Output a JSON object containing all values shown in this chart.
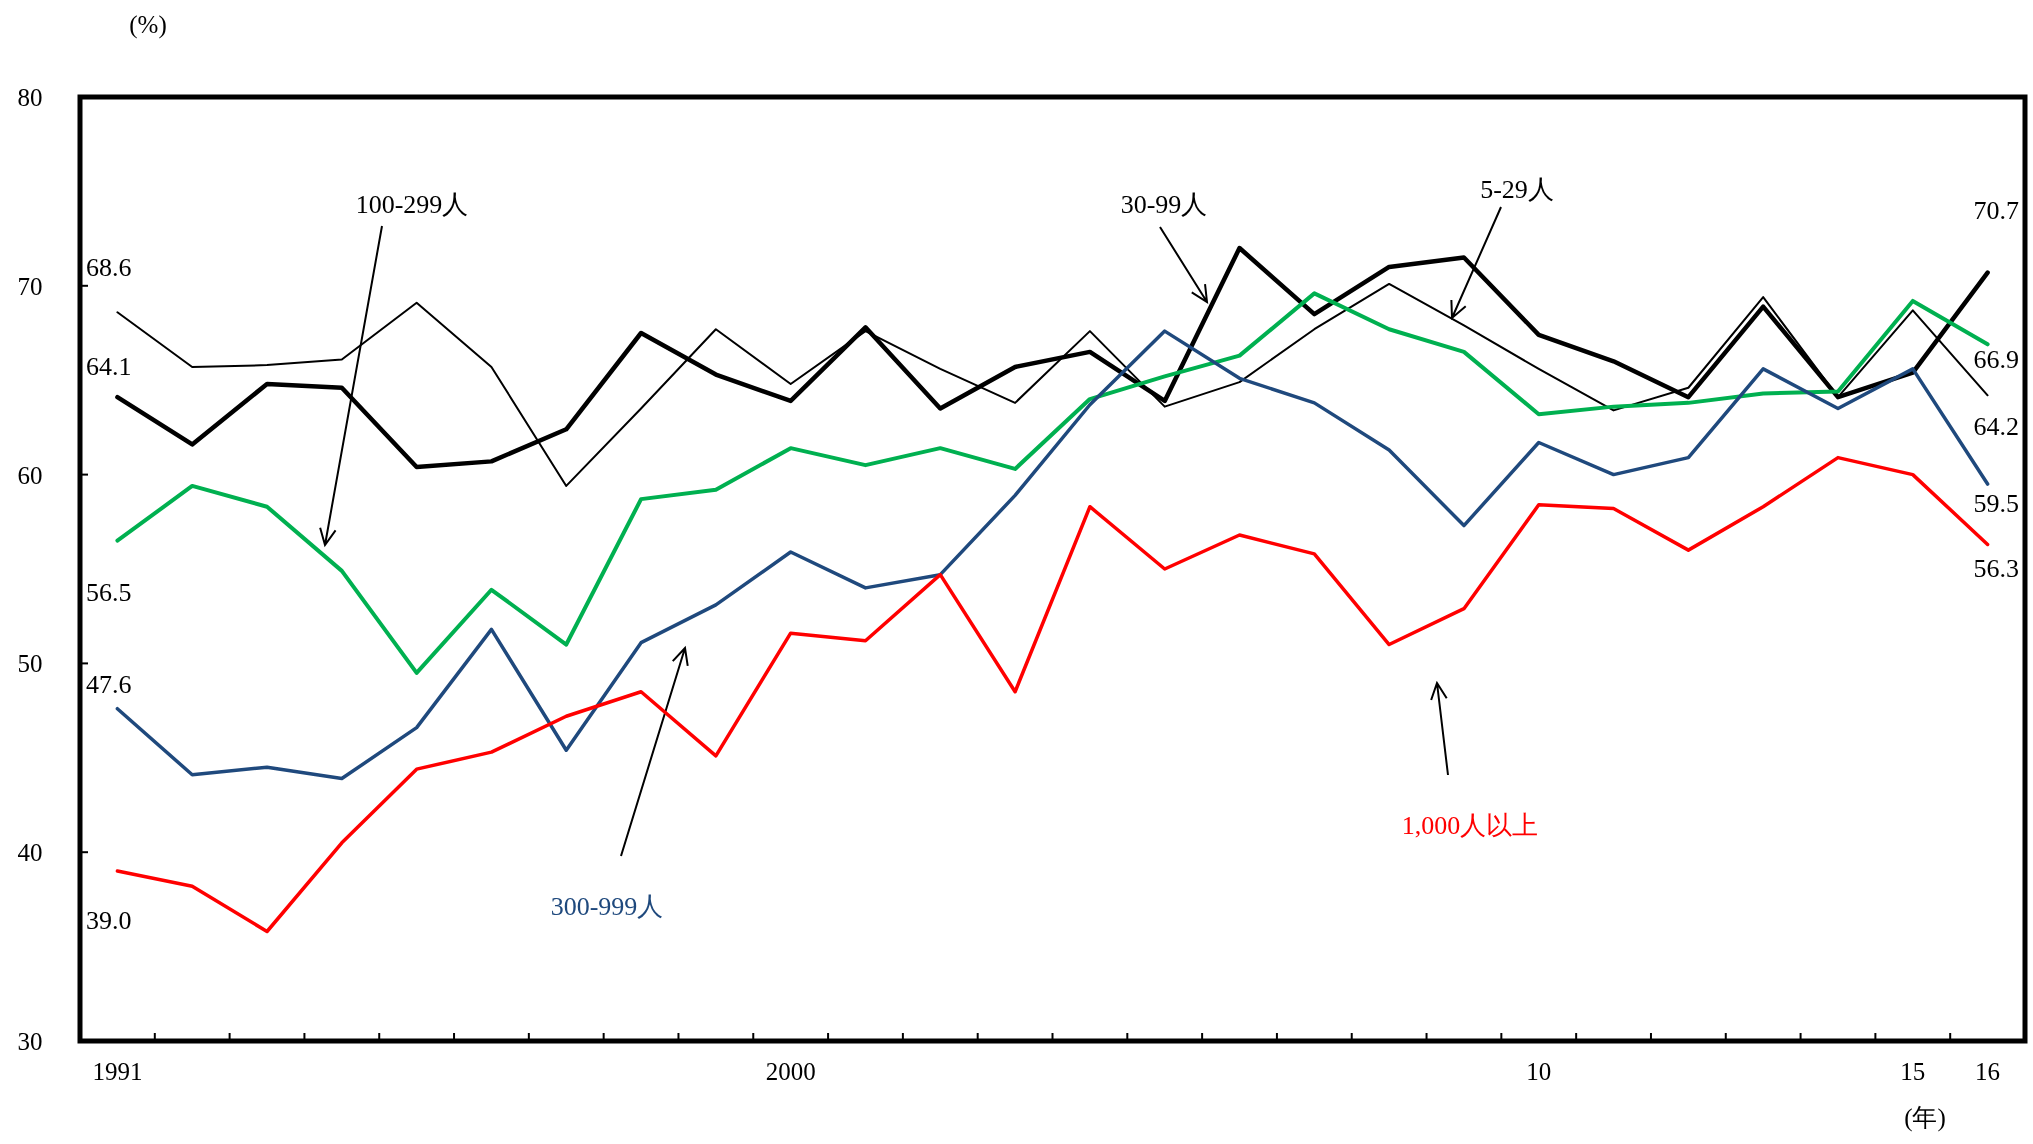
{
  "chart_data": {
    "type": "line",
    "ylabel": "(%)",
    "xlabel": "(年)",
    "categories": [
      "1991",
      null,
      null,
      null,
      null,
      null,
      null,
      null,
      null,
      "2000",
      null,
      null,
      null,
      null,
      null,
      null,
      null,
      null,
      null,
      "10",
      null,
      null,
      null,
      null,
      "15",
      "16"
    ],
    "ylim": [
      30,
      80
    ],
    "yticks": [
      30,
      40,
      50,
      60,
      70,
      80
    ],
    "series": [
      {
        "name": "5-29人",
        "color": "#000000",
        "values": [
          68.6,
          65.7,
          65.8,
          66.1,
          69.1,
          65.7,
          59.4,
          63.5,
          67.7,
          64.8,
          67.6,
          65.6,
          63.8,
          67.6,
          63.6,
          64.9,
          67.7,
          70.1,
          67.9,
          65.6,
          63.4,
          64.6,
          69.4,
          64.1,
          68.7,
          64.2
        ],
        "value_labels": [
          "68.6",
          null,
          null,
          null,
          null,
          null,
          null,
          null,
          null,
          null,
          null,
          null,
          null,
          null,
          null,
          null,
          null,
          null,
          null,
          null,
          null,
          null,
          null,
          null,
          null,
          "64.2"
        ]
      },
      {
        "name": "30-99人",
        "color": "#000000",
        "values": [
          64.1,
          61.6,
          64.8,
          64.6,
          60.4,
          60.7,
          62.4,
          67.5,
          65.3,
          63.9,
          67.8,
          63.5,
          65.7,
          66.5,
          63.9,
          72.0,
          68.5,
          71.0,
          71.5,
          67.4,
          66.0,
          64.1,
          68.9,
          64.1,
          65.4,
          70.7
        ],
        "value_labels": [
          "64.1",
          null,
          null,
          null,
          null,
          null,
          null,
          null,
          null,
          null,
          null,
          null,
          null,
          null,
          null,
          null,
          null,
          null,
          null,
          null,
          null,
          null,
          null,
          null,
          null,
          "70.7"
        ]
      },
      {
        "name": "100-299人",
        "color": "#00b050",
        "values": [
          56.5,
          59.4,
          58.3,
          54.9,
          49.5,
          53.9,
          51.0,
          58.7,
          59.2,
          61.4,
          60.5,
          61.4,
          60.3,
          64.0,
          65.2,
          66.3,
          69.6,
          67.7,
          66.5,
          63.2,
          63.6,
          63.8,
          64.3,
          64.4,
          69.2,
          66.9
        ],
        "value_labels": [
          "56.5",
          null,
          null,
          null,
          null,
          null,
          null,
          null,
          null,
          null,
          null,
          null,
          null,
          null,
          null,
          null,
          null,
          null,
          null,
          null,
          null,
          null,
          null,
          null,
          null,
          "66.9"
        ]
      },
      {
        "name": "300-999人",
        "color": "#1f497d",
        "values": [
          47.6,
          44.1,
          44.5,
          43.9,
          46.6,
          51.8,
          45.4,
          51.1,
          53.1,
          55.9,
          54.0,
          54.7,
          58.9,
          63.7,
          67.6,
          65.1,
          63.8,
          61.3,
          57.3,
          61.7,
          60.0,
          60.9,
          65.6,
          63.5,
          65.6,
          59.5
        ],
        "value_labels": [
          "47.6",
          null,
          null,
          null,
          null,
          null,
          null,
          null,
          null,
          null,
          null,
          null,
          null,
          null,
          null,
          null,
          null,
          null,
          null,
          null,
          null,
          null,
          null,
          null,
          null,
          "59.5"
        ]
      },
      {
        "name": "1,000人以上",
        "color": "#ff0000",
        "values": [
          39.0,
          38.2,
          35.8,
          40.5,
          44.4,
          45.3,
          47.2,
          48.5,
          45.1,
          51.6,
          51.2,
          54.7,
          48.5,
          58.3,
          55.0,
          56.8,
          55.8,
          51.0,
          52.9,
          58.4,
          58.2,
          56.0,
          58.3,
          60.9,
          60.0,
          56.3
        ],
        "value_labels": [
          "39.0",
          null,
          null,
          null,
          null,
          null,
          null,
          null,
          null,
          null,
          null,
          null,
          null,
          null,
          null,
          null,
          null,
          null,
          null,
          null,
          null,
          null,
          null,
          null,
          null,
          "56.3"
        ]
      }
    ]
  }
}
